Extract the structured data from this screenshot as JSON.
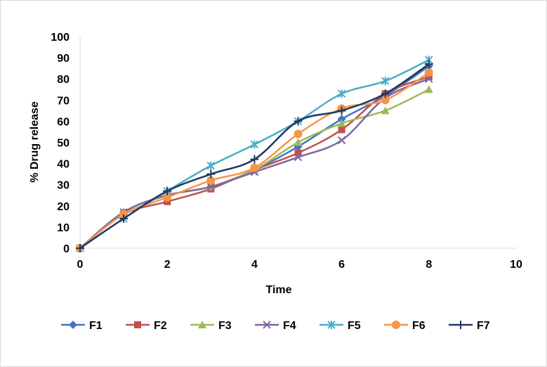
{
  "chart_data": {
    "type": "line",
    "xlabel": "Time",
    "ylabel": "% Drug release",
    "xlim": [
      0,
      10
    ],
    "ylim": [
      0,
      100
    ],
    "x_ticks": [
      0,
      2,
      4,
      6,
      8,
      10
    ],
    "y_ticks": [
      0,
      10,
      20,
      30,
      40,
      50,
      60,
      70,
      80,
      90,
      100
    ],
    "grid": false,
    "legend_position": "bottom",
    "x": [
      0,
      1,
      2,
      3,
      4,
      5,
      6,
      7,
      8
    ],
    "series": [
      {
        "name": "F1",
        "color": "#4472c4",
        "marker": "diamond",
        "values": [
          0,
          17,
          25,
          29,
          37,
          48,
          61,
          72,
          86
        ]
      },
      {
        "name": "F2",
        "color": "#c0504d",
        "marker": "square",
        "values": [
          0,
          16,
          22,
          28,
          37,
          45,
          56,
          73,
          81
        ]
      },
      {
        "name": "F3",
        "color": "#9bbb59",
        "marker": "triangle",
        "values": [
          0,
          17,
          25,
          29,
          37,
          50,
          59,
          65,
          75
        ]
      },
      {
        "name": "F4",
        "color": "#8064a2",
        "marker": "x",
        "values": [
          0,
          17,
          25,
          29,
          36,
          43,
          51,
          71,
          80
        ]
      },
      {
        "name": "F5",
        "color": "#4bacc6",
        "marker": "star",
        "values": [
          0,
          14,
          27,
          39,
          49,
          60,
          73,
          79,
          89
        ]
      },
      {
        "name": "F6",
        "color": "#f79646",
        "marker": "circle",
        "values": [
          0,
          16,
          24,
          32,
          38,
          54,
          66,
          70,
          83
        ]
      },
      {
        "name": "F7",
        "color": "#1f3864",
        "marker": "plus",
        "values": [
          0,
          14,
          27,
          35,
          42,
          60,
          65,
          73,
          87
        ]
      }
    ]
  }
}
